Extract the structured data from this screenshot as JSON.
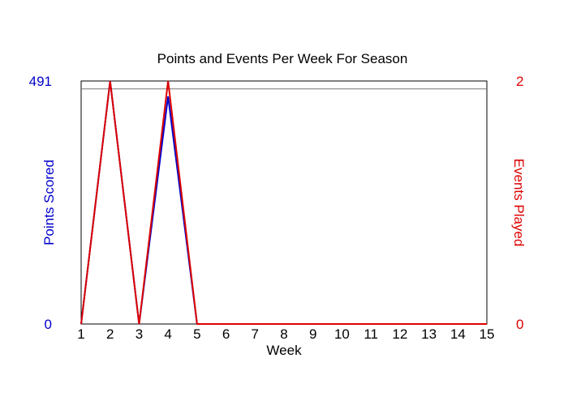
{
  "chart_data": {
    "type": "line",
    "title": "Points and Events Per Week For Season",
    "xlabel": "Week",
    "ylabel_left": "Points Scored",
    "ylabel_right": "Events Played",
    "x": [
      1,
      2,
      3,
      4,
      5,
      6,
      7,
      8,
      9,
      10,
      11,
      12,
      13,
      14,
      15
    ],
    "x_tick_labels": [
      "1",
      "2",
      "3",
      "4",
      "5",
      "6",
      "7",
      "8",
      "9",
      "10",
      "11",
      "12",
      "13",
      "14",
      "15"
    ],
    "ylim_left": [
      0,
      491
    ],
    "ylim_right": [
      0,
      2
    ],
    "y_tick_labels_left": [
      "0",
      "491"
    ],
    "y_tick_labels_right": [
      "0",
      "2"
    ],
    "reference_line_left": 475,
    "series": [
      {
        "axis": "left",
        "color": "#0000cc",
        "values": [
          0,
          491,
          0,
          460,
          0,
          0,
          0,
          0,
          0,
          0,
          0,
          0,
          0,
          0,
          0
        ]
      },
      {
        "axis": "right",
        "color": "#dd0000",
        "values": [
          0,
          2,
          0,
          2,
          0,
          0,
          0,
          0,
          0,
          0,
          0,
          0,
          0,
          0,
          0
        ]
      }
    ],
    "colors": {
      "left_axis": "#0000cc",
      "right_axis": "#dd0000",
      "reference_line": "#777777"
    },
    "grid": false,
    "legend": "none"
  }
}
